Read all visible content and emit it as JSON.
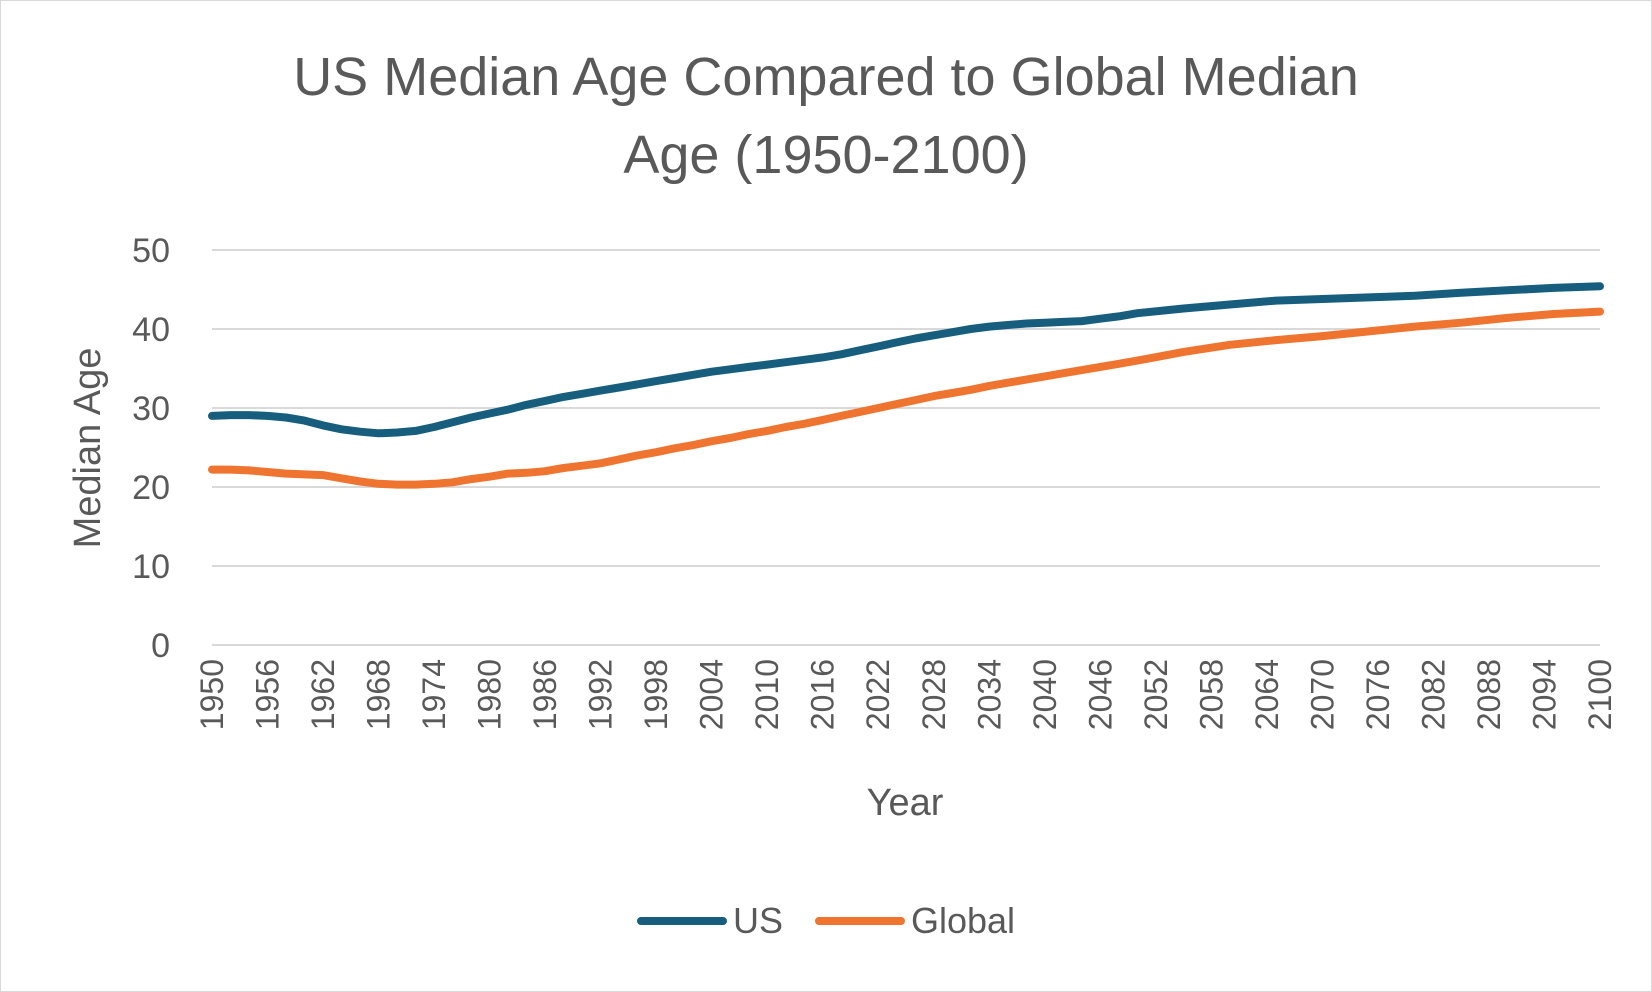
{
  "colors": {
    "us": "#175E7E",
    "global": "#EE7430",
    "grid": "#D9D9D9",
    "text": "#595959"
  },
  "chart_data": {
    "type": "line",
    "title_lines": [
      "US Median Age Compared to Global Median",
      "Age (1950-2100)"
    ],
    "xlabel": "Year",
    "ylabel": "Median Age",
    "xlim": [
      1950,
      2100
    ],
    "ylim": [
      0,
      50
    ],
    "yticks": [
      "0",
      "10",
      "20",
      "30",
      "40",
      "50"
    ],
    "xticks": [
      "1950",
      "1956",
      "1962",
      "1968",
      "1974",
      "1980",
      "1986",
      "1992",
      "1998",
      "2004",
      "2010",
      "2016",
      "2022",
      "2028",
      "2034",
      "2040",
      "2046",
      "2052",
      "2058",
      "2064",
      "2070",
      "2076",
      "2082",
      "2088",
      "2094",
      "2100"
    ],
    "grid": true,
    "legend_position": "bottom",
    "series": [
      {
        "name": "US",
        "color": "#175E7E",
        "x": [
          1950,
          1952,
          1954,
          1956,
          1958,
          1960,
          1962,
          1964,
          1966,
          1968,
          1970,
          1972,
          1974,
          1976,
          1978,
          1980,
          1982,
          1984,
          1986,
          1988,
          1990,
          1992,
          1994,
          1996,
          1998,
          2000,
          2002,
          2004,
          2006,
          2008,
          2010,
          2012,
          2014,
          2016,
          2018,
          2020,
          2022,
          2024,
          2026,
          2028,
          2030,
          2032,
          2034,
          2036,
          2038,
          2040,
          2042,
          2044,
          2046,
          2048,
          2050,
          2055,
          2060,
          2065,
          2070,
          2075,
          2080,
          2085,
          2090,
          2095,
          2100
        ],
        "values": [
          29.0,
          29.1,
          29.1,
          29.0,
          28.8,
          28.4,
          27.8,
          27.3,
          27.0,
          26.8,
          26.9,
          27.1,
          27.6,
          28.2,
          28.8,
          29.3,
          29.8,
          30.4,
          30.9,
          31.4,
          31.8,
          32.2,
          32.6,
          33.0,
          33.4,
          33.8,
          34.2,
          34.6,
          34.9,
          35.2,
          35.5,
          35.8,
          36.1,
          36.4,
          36.8,
          37.3,
          37.8,
          38.3,
          38.8,
          39.2,
          39.6,
          40.0,
          40.3,
          40.5,
          40.7,
          40.8,
          40.9,
          41.0,
          41.3,
          41.6,
          42.0,
          42.6,
          43.1,
          43.6,
          43.8,
          44.0,
          44.2,
          44.6,
          44.9,
          45.2,
          45.4
        ]
      },
      {
        "name": "Global",
        "color": "#EE7430",
        "x": [
          1950,
          1952,
          1954,
          1956,
          1958,
          1960,
          1962,
          1964,
          1966,
          1968,
          1970,
          1972,
          1974,
          1976,
          1978,
          1980,
          1982,
          1984,
          1986,
          1988,
          1990,
          1992,
          1994,
          1996,
          1998,
          2000,
          2002,
          2004,
          2006,
          2008,
          2010,
          2012,
          2014,
          2016,
          2018,
          2020,
          2022,
          2024,
          2026,
          2028,
          2030,
          2032,
          2034,
          2036,
          2038,
          2040,
          2042,
          2044,
          2046,
          2048,
          2050,
          2055,
          2060,
          2065,
          2070,
          2075,
          2080,
          2085,
          2090,
          2095,
          2100
        ],
        "values": [
          22.2,
          22.2,
          22.1,
          21.9,
          21.7,
          21.6,
          21.5,
          21.1,
          20.7,
          20.4,
          20.3,
          20.3,
          20.4,
          20.6,
          21.0,
          21.3,
          21.7,
          21.8,
          22.0,
          22.4,
          22.7,
          23.0,
          23.5,
          24.0,
          24.4,
          24.9,
          25.3,
          25.8,
          26.2,
          26.7,
          27.1,
          27.6,
          28.0,
          28.5,
          29.0,
          29.5,
          30.0,
          30.5,
          31.0,
          31.5,
          31.9,
          32.3,
          32.8,
          33.2,
          33.6,
          34.0,
          34.4,
          34.8,
          35.2,
          35.6,
          36.0,
          37.1,
          38.0,
          38.6,
          39.1,
          39.7,
          40.3,
          40.8,
          41.4,
          41.9,
          42.2
        ]
      }
    ]
  }
}
